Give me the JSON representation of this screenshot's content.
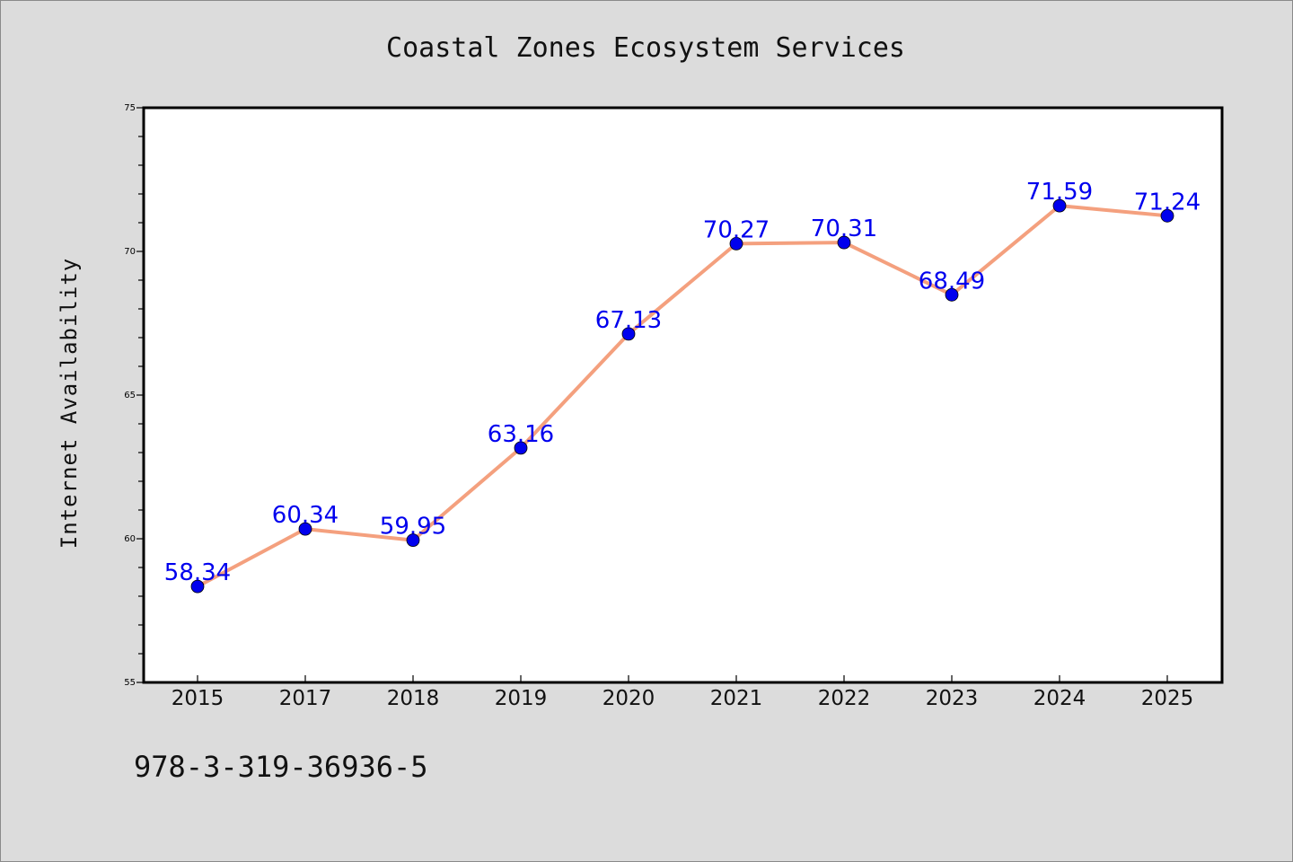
{
  "chart_data": {
    "type": "line",
    "title": "Coastal Zones Ecosystem Services",
    "xlabel": "",
    "ylabel": "Internet Availability",
    "categories": [
      "2015",
      "2017",
      "2018",
      "2019",
      "2020",
      "2021",
      "2022",
      "2023",
      "2024",
      "2025"
    ],
    "series": [
      {
        "values": [
          58.34,
          60.34,
          59.95,
          63.16,
          67.13,
          70.27,
          70.31,
          68.49,
          71.59,
          71.24
        ],
        "labels": [
          "58.34",
          "60.34",
          "59.95",
          "63.16",
          "67.13",
          "70.27",
          "70.31",
          "68.49",
          "71.59",
          "71.24"
        ],
        "line_color": "#f4a07e",
        "marker_color": "#0000ee"
      }
    ],
    "ylim": [
      55,
      75
    ],
    "yticks": [
      "55",
      "60",
      "65",
      "70",
      "75"
    ],
    "grid": false,
    "legend": "none",
    "label_color": "#0000ee",
    "background": "#dcdcdc",
    "plot_background": "#ffffff"
  },
  "footer": {
    "isbn": "978-3-319-36936-5"
  }
}
